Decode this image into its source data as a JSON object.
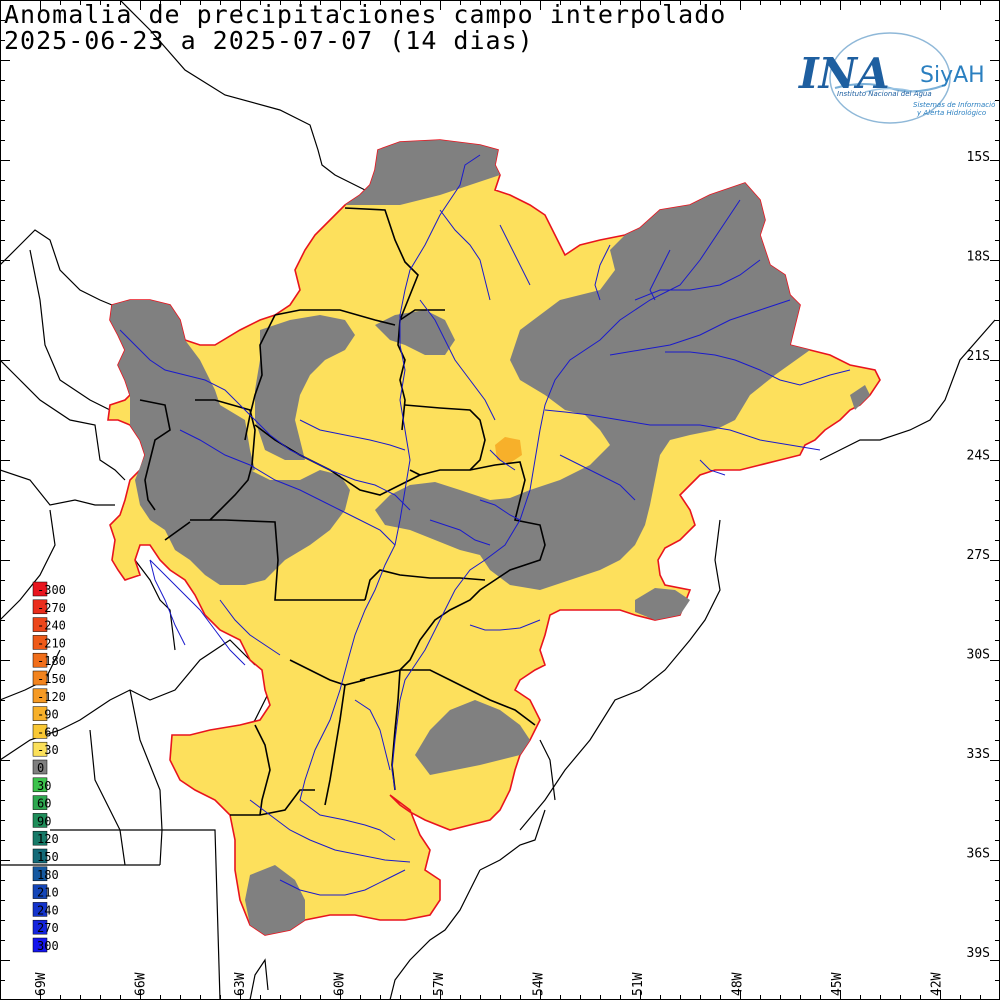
{
  "title": {
    "line1": "Anomalia de precipitaciones campo interpolado",
    "line2": "2025-06-23 a 2025-07-07 (14 dias)"
  },
  "logo": {
    "name": "INA",
    "sub": "SiyAH",
    "line1": "Instituto Nacional del Agua",
    "line2": "Sistemas de Información",
    "line3": "y Alerta Hidrológico",
    "color": "#1e5fa0"
  },
  "lat_labels": [
    "15S",
    "18S",
    "21S",
    "24S",
    "27S",
    "30S",
    "33S",
    "36S",
    "39S"
  ],
  "lon_labels": [
    "69W",
    "66W",
    "63W",
    "60W",
    "57W",
    "54W",
    "51W",
    "48W",
    "45W",
    "42W"
  ],
  "legend": [
    {
      "value": "-300",
      "color": "#e8141e"
    },
    {
      "value": "-270",
      "color": "#ea2d1c"
    },
    {
      "value": "-240",
      "color": "#ec461a"
    },
    {
      "value": "-210",
      "color": "#ee5a18"
    },
    {
      "value": "-180",
      "color": "#f06e1a"
    },
    {
      "value": "-150",
      "color": "#f2841e"
    },
    {
      "value": "-120",
      "color": "#f59a24"
    },
    {
      "value": "-90",
      "color": "#f7b02a"
    },
    {
      "value": "-60",
      "color": "#f9c834"
    },
    {
      "value": "-30",
      "color": "#fbe05a"
    },
    {
      "value": "0",
      "color": "#7f7f7f"
    },
    {
      "value": "30",
      "color": "#3cc24c"
    },
    {
      "value": "60",
      "color": "#2ea850"
    },
    {
      "value": "90",
      "color": "#1f8e5a"
    },
    {
      "value": "120",
      "color": "#177a68"
    },
    {
      "value": "150",
      "color": "#136a78"
    },
    {
      "value": "180",
      "color": "#1458a0"
    },
    {
      "value": "210",
      "color": "#1446b8"
    },
    {
      "value": "240",
      "color": "#1434cc"
    },
    {
      "value": "270",
      "color": "#1424de"
    },
    {
      "value": "300",
      "color": "#1414ee"
    }
  ],
  "colors": {
    "basin_fill": "#fde05c",
    "neutral": "#808080",
    "basin_border": "#e8141e",
    "rivers": "#1a1acc",
    "borders": "#000000"
  }
}
